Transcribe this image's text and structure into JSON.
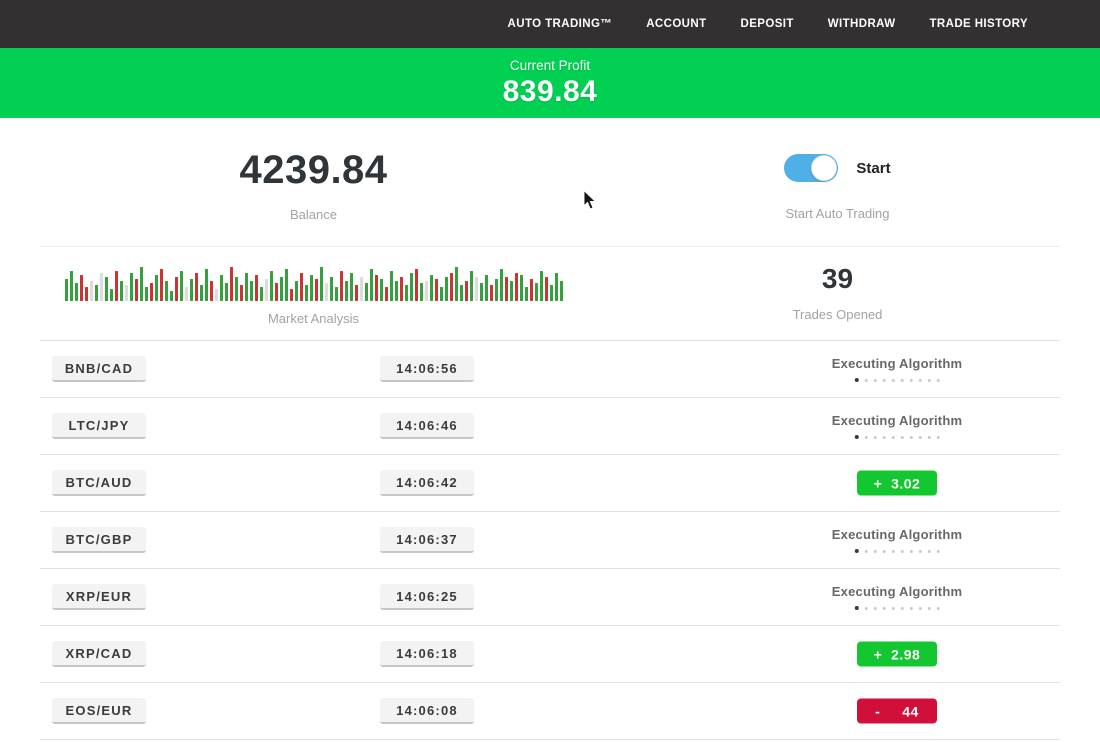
{
  "nav": {
    "items": [
      {
        "label": "AUTO TRADING™"
      },
      {
        "label": "ACCOUNT"
      },
      {
        "label": "DEPOSIT"
      },
      {
        "label": "WITHDRAW"
      },
      {
        "label": "TRADE HISTORY"
      }
    ]
  },
  "profit_banner": {
    "label": "Current Profit",
    "value": "839.84"
  },
  "stats": {
    "balance": {
      "value": "4239.84",
      "label": "Balance"
    },
    "auto_trading": {
      "toggle_label": "Start",
      "label": "Start Auto Trading",
      "toggle_on": true
    },
    "market_analysis": {
      "label": "Market Analysis",
      "bars": [
        [
          "g",
          22
        ],
        [
          "g",
          30
        ],
        [
          "g",
          18
        ],
        [
          "r",
          26
        ],
        [
          "r",
          14
        ],
        [
          "p",
          20
        ],
        [
          "g",
          16
        ],
        [
          "p",
          28
        ],
        [
          "g",
          24
        ],
        [
          "g",
          12
        ],
        [
          "r",
          30
        ],
        [
          "g",
          20
        ],
        [
          "p",
          16
        ],
        [
          "g",
          28
        ],
        [
          "r",
          22
        ],
        [
          "g",
          34
        ],
        [
          "g",
          14
        ],
        [
          "r",
          18
        ],
        [
          "g",
          26
        ],
        [
          "r",
          32
        ],
        [
          "g",
          20
        ],
        [
          "g",
          10
        ],
        [
          "r",
          24
        ],
        [
          "g",
          30
        ],
        [
          "p",
          14
        ],
        [
          "g",
          22
        ],
        [
          "r",
          28
        ],
        [
          "g",
          16
        ],
        [
          "g",
          32
        ],
        [
          "r",
          20
        ],
        [
          "p",
          12
        ],
        [
          "g",
          26
        ],
        [
          "g",
          18
        ],
        [
          "r",
          34
        ],
        [
          "g",
          24
        ],
        [
          "r",
          16
        ],
        [
          "g",
          28
        ],
        [
          "g",
          20
        ],
        [
          "r",
          26
        ],
        [
          "g",
          14
        ],
        [
          "p",
          22
        ],
        [
          "g",
          30
        ],
        [
          "r",
          18
        ],
        [
          "g",
          24
        ],
        [
          "g",
          32
        ],
        [
          "r",
          12
        ],
        [
          "g",
          20
        ],
        [
          "r",
          28
        ],
        [
          "g",
          16
        ],
        [
          "g",
          26
        ],
        [
          "r",
          22
        ],
        [
          "g",
          34
        ],
        [
          "p",
          18
        ],
        [
          "g",
          24
        ],
        [
          "g",
          14
        ],
        [
          "r",
          30
        ],
        [
          "g",
          20
        ],
        [
          "g",
          28
        ],
        [
          "r",
          16
        ],
        [
          "p",
          24
        ],
        [
          "g",
          18
        ],
        [
          "g",
          32
        ],
        [
          "r",
          26
        ],
        [
          "g",
          22
        ],
        [
          "r",
          14
        ],
        [
          "g",
          30
        ],
        [
          "g",
          20
        ],
        [
          "r",
          24
        ],
        [
          "g",
          16
        ],
        [
          "g",
          28
        ],
        [
          "r",
          32
        ],
        [
          "g",
          18
        ],
        [
          "p",
          20
        ],
        [
          "g",
          26
        ],
        [
          "r",
          22
        ],
        [
          "g",
          14
        ],
        [
          "g",
          24
        ],
        [
          "r",
          28
        ],
        [
          "g",
          34
        ],
        [
          "g",
          16
        ],
        [
          "r",
          20
        ],
        [
          "g",
          30
        ],
        [
          "p",
          24
        ],
        [
          "g",
          18
        ],
        [
          "g",
          26
        ],
        [
          "r",
          16
        ],
        [
          "g",
          22
        ],
        [
          "g",
          32
        ],
        [
          "r",
          24
        ],
        [
          "g",
          20
        ],
        [
          "r",
          28
        ],
        [
          "g",
          26
        ],
        [
          "g",
          14
        ],
        [
          "r",
          22
        ],
        [
          "g",
          18
        ],
        [
          "g",
          30
        ],
        [
          "r",
          24
        ],
        [
          "g",
          16
        ],
        [
          "g",
          28
        ],
        [
          "g",
          20
        ]
      ]
    },
    "trades_opened": {
      "value": "39",
      "label": "Trades Opened"
    }
  },
  "executing_dots": {
    "count": 10,
    "active_index": 0
  },
  "trades": [
    {
      "pair": "BNB/CAD",
      "time": "14:06:56",
      "status": "executing",
      "status_label": "Executing Algorithm"
    },
    {
      "pair": "LTC/JPY",
      "time": "14:06:46",
      "status": "executing",
      "status_label": "Executing Algorithm"
    },
    {
      "pair": "BTC/AUD",
      "time": "14:06:42",
      "status": "profit",
      "result": "+  3.02"
    },
    {
      "pair": "BTC/GBP",
      "time": "14:06:37",
      "status": "executing",
      "status_label": "Executing Algorithm"
    },
    {
      "pair": "XRP/EUR",
      "time": "14:06:25",
      "status": "executing",
      "status_label": "Executing Algorithm"
    },
    {
      "pair": "XRP/CAD",
      "time": "14:06:18",
      "status": "profit",
      "result": "+  2.98"
    },
    {
      "pair": "EOS/EUR",
      "time": "14:06:08",
      "status": "loss",
      "result": "-     44"
    }
  ],
  "colors": {
    "nav_bg": "#333031",
    "banner_green": "#02d053",
    "toggle_blue": "#4fb0e8",
    "badge_green": "#12c72f",
    "badge_red": "#d01038",
    "bar": {
      "g": "#35a13c",
      "r": "#cc3333",
      "p": "#dcdcdc"
    }
  }
}
